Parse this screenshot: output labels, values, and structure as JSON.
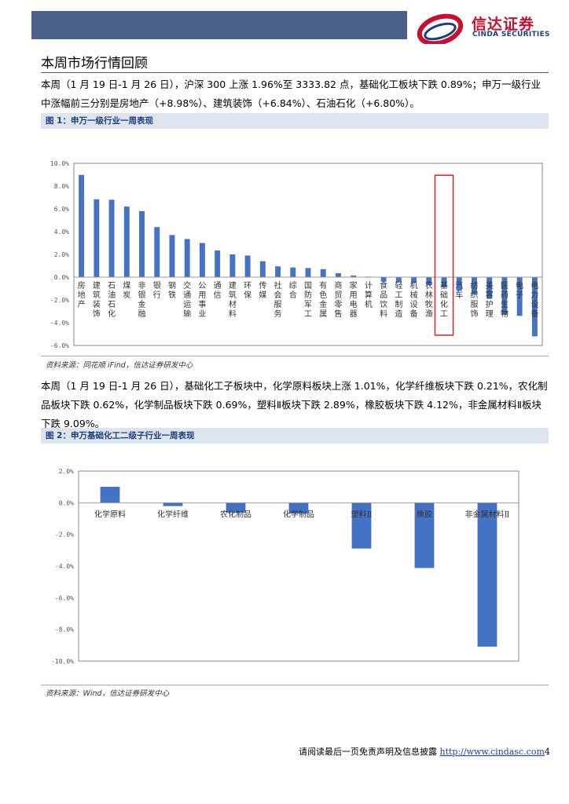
{
  "header": {
    "logo_cn": "信达证券",
    "logo_en": "CINDA SECURITIES"
  },
  "section": {
    "title": "本周市场行情回顾",
    "para1": "本周（1 月 19 日-1 月 26 日），沪深 300 上涨 1.96%至 3333.82 点，基础化工板块下跌 0.89%；申万一级行业中涨幅前三分别是房地产（+8.98%）、建筑装饰（+6.84%）、石油石化（+6.80%）。",
    "para2": "本周（1 月 19 日-1 月 26 日），基础化工子板块中，化学原料板块上涨 1.01%，化学纤维板块下跌 0.21%，农化制品板块下跌 0.62%，化学制品板块下跌 0.69%，塑料Ⅱ板块下跌 2.89%，橡胶板块下跌 4.12%，非金属材料Ⅱ板块下跌 9.09%。"
  },
  "figure1": {
    "title": "图 1：申万一级行业一周表现",
    "source": "资料来源：同花顺 iFind，信达证券研发中心"
  },
  "figure2": {
    "title": "图 2：申万基础化工二级子行业一周表现",
    "source": "资料来源：Wind，信达证券研发中心"
  },
  "footer": {
    "text": "请阅读最后一页免责声明及信息披露 ",
    "url": "http://www.cindasc.com",
    "page": "4"
  },
  "colors": {
    "bar": "#4472c4",
    "highlight": "#e02020",
    "header": "#48608a"
  },
  "chart_data": [
    {
      "type": "bar",
      "title": "",
      "ylim": [
        -6,
        10
      ],
      "yticks": [
        "10.0%",
        "8.0%",
        "6.0%",
        "4.0%",
        "2.0%",
        "0.0%",
        "-2.0%",
        "-4.0%",
        "-6.0%"
      ],
      "highlight_category": "基础化工",
      "categories": [
        "房地产",
        "建筑装饰",
        "石油石化",
        "煤炭",
        "非银金融",
        "银行",
        "钢铁",
        "交通运输",
        "公用事业",
        "通信",
        "建筑材料",
        "环保",
        "传媒",
        "社会服务",
        "综合",
        "国防军工",
        "有色金属",
        "商贸零售",
        "家用电器",
        "计算机",
        "食品饮料",
        "轻工制造",
        "机械设备",
        "农林牧渔",
        "基础化工",
        "汽车",
        "纺织服饰",
        "美容护理",
        "医药生物",
        "电子",
        "电力设备"
      ],
      "values": [
        8.98,
        6.84,
        6.8,
        6.2,
        5.8,
        4.4,
        3.7,
        3.35,
        3.0,
        2.35,
        2.0,
        1.9,
        1.4,
        0.95,
        0.85,
        0.8,
        0.7,
        0.35,
        0.15,
        0.05,
        -0.4,
        -0.45,
        -0.5,
        -0.7,
        -0.89,
        -1.2,
        -1.5,
        -1.9,
        -3.3,
        -3.4,
        -5.2
      ]
    },
    {
      "type": "bar",
      "title": "",
      "ylim": [
        -10,
        2
      ],
      "yticks": [
        "2.0%",
        "0.0%",
        "-2.0%",
        "-4.0%",
        "-6.0%",
        "-8.0%",
        "-10.0%"
      ],
      "categories": [
        "化学原料",
        "化学纤维",
        "农化制品",
        "化学制品",
        "塑料Ⅱ",
        "橡胶",
        "非金属材料Ⅱ"
      ],
      "values": [
        1.01,
        -0.21,
        -0.62,
        -0.69,
        -2.89,
        -4.12,
        -9.09
      ]
    }
  ]
}
